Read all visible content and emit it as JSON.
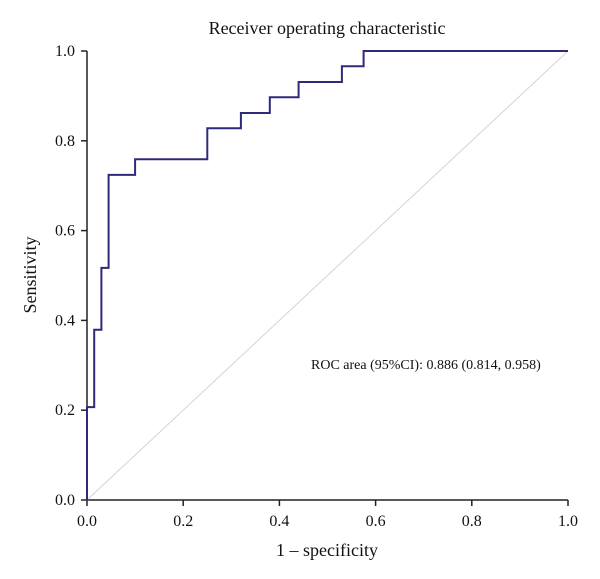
{
  "chart_data": {
    "type": "line",
    "title": "Receiver operating characteristic",
    "xlabel": "1 – specificity",
    "ylabel": "Sensitivity",
    "xlim": [
      0,
      1
    ],
    "ylim": [
      0,
      1
    ],
    "xticks": [
      "0.0",
      "0.2",
      "0.4",
      "0.6",
      "0.8",
      "1.0"
    ],
    "yticks": [
      "0.0",
      "0.2",
      "0.4",
      "0.6",
      "0.8",
      "1.0"
    ],
    "grid": false,
    "legend": "none",
    "annotation": "ROC area (95%CI): 0.886 (0.814, 0.958)",
    "series": [
      {
        "x": [
          0,
          0,
          0.015,
          0.015,
          0.03,
          0.03,
          0.045,
          0.045,
          0.1,
          0.1,
          0.25,
          0.25,
          0.32,
          0.32,
          0.38,
          0.38,
          0.44,
          0.44,
          0.53,
          0.53,
          0.575,
          0.575,
          1.0
        ],
        "y": [
          0,
          0.207,
          0.207,
          0.379,
          0.379,
          0.517,
          0.517,
          0.724,
          0.724,
          0.759,
          0.759,
          0.828,
          0.828,
          0.862,
          0.862,
          0.897,
          0.897,
          0.931,
          0.931,
          0.966,
          0.966,
          1.0,
          1.0
        ],
        "color": "#2e2a7a"
      },
      {
        "x": [
          0,
          1
        ],
        "y": [
          0,
          1
        ],
        "color": "#d4d4d4"
      }
    ]
  }
}
